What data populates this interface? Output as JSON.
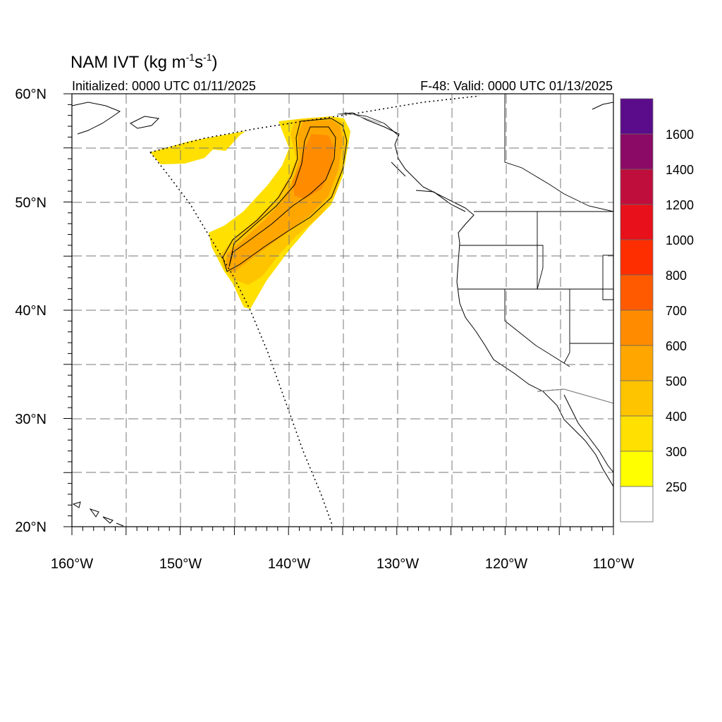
{
  "title": {
    "main": "NAM IVT (kg m",
    "exp1": "-1",
    "mid": "s",
    "exp2": "-1",
    "close": ")",
    "initialized": "Initialized: 0000 UTC 01/11/2025",
    "valid": "F-48: Valid: 0000 UTC 01/13/2025"
  },
  "axes": {
    "lat_labels": [
      "60°N",
      "50°N",
      "40°N",
      "30°N",
      "20°N"
    ],
    "lon_labels": [
      "160°W",
      "150°W",
      "140°W",
      "130°W",
      "120°W",
      "110°W"
    ],
    "lat_range": [
      20,
      60
    ],
    "lon_range": [
      -160,
      -110
    ],
    "grid": true
  },
  "colorbar": {
    "labels": [
      "1600",
      "1400",
      "1200",
      "1000",
      "800",
      "700",
      "600",
      "500",
      "400",
      "300",
      "250"
    ],
    "colors": [
      "#5a0c8a",
      "#8a0a66",
      "#c00e3c",
      "#e8101a",
      "#ff2e00",
      "#ff5a00",
      "#ff8c00",
      "#ffa600",
      "#ffc400",
      "#ffe000",
      "#ffff00",
      "#ffffff"
    ]
  }
}
